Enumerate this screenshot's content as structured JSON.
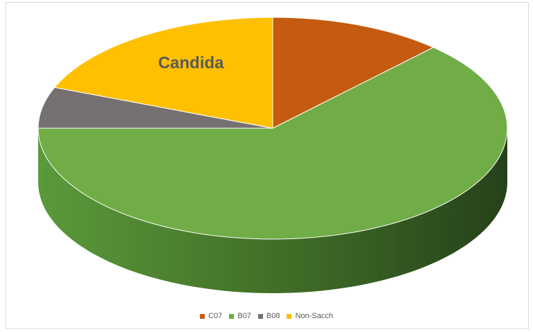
{
  "chart_data": {
    "type": "pie",
    "title": "",
    "style": "3d",
    "legend_position": "bottom",
    "categories": [
      "C07",
      "B07",
      "B08",
      "Non-Sacch"
    ],
    "values": [
      12,
      63,
      6,
      19
    ],
    "value_unit": "percent (estimated from slice angles)",
    "colors": [
      "#c55a11",
      "#70ad47",
      "#767171",
      "#ffc000"
    ],
    "side_colors": [
      "#7a3a0b",
      "#3f6b26",
      "#4a4646",
      "#a07800"
    ],
    "slice_labels": [
      {
        "category": "Non-Sacch",
        "text": "Candida"
      }
    ]
  }
}
